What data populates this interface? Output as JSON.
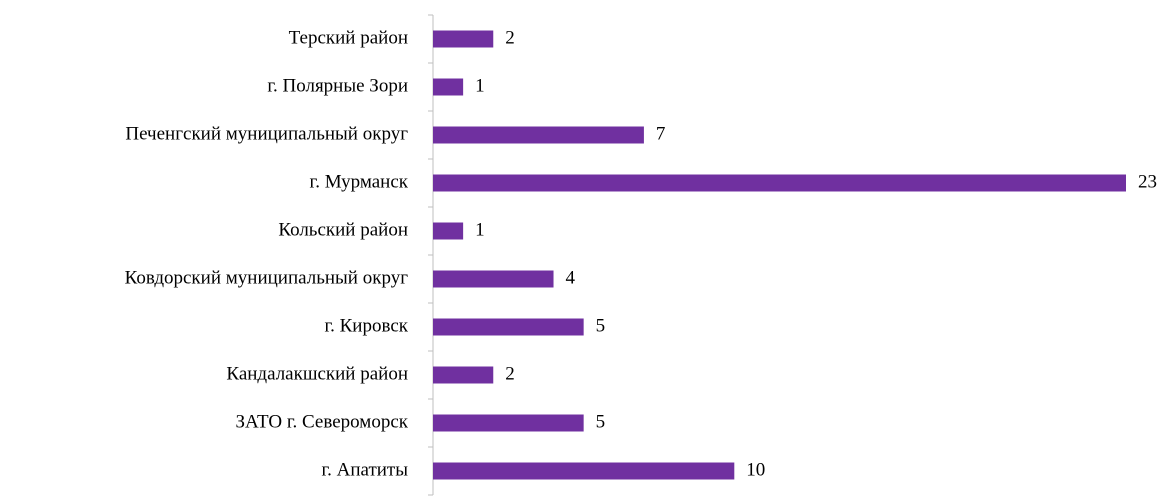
{
  "chart_data": {
    "type": "barh",
    "categories": [
      "Терский район",
      "г. Полярные Зори",
      "Печенгский муниципальный округ",
      "г. Мурманск",
      "Кольский район",
      "Ковдорский муниципальный округ",
      "г. Кировск",
      "Кандалакшский район",
      "ЗАТО г. Североморск",
      "г. Апатиты"
    ],
    "values": [
      2,
      1,
      7,
      23,
      1,
      4,
      5,
      2,
      5,
      10
    ],
    "color": "#7030a0"
  }
}
